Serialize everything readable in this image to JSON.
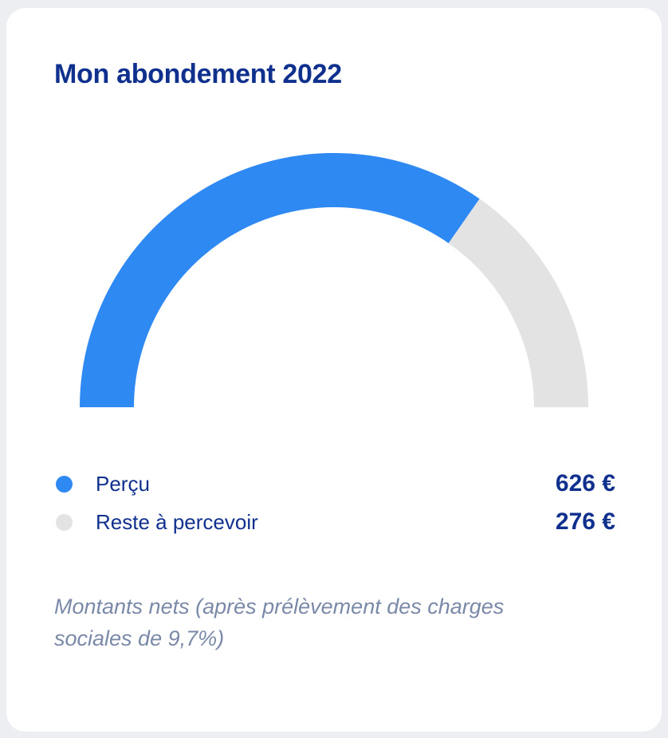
{
  "page": {
    "background_color": "#ECEEF2",
    "card_background_color": "#FFFFFF"
  },
  "header": {
    "title": "Mon abondement 2022",
    "title_color": "#10308E"
  },
  "chart_data": {
    "type": "pie",
    "subtype": "half-donut-gauge",
    "start_angle_deg": 180,
    "end_angle_deg": 0,
    "unit": "€",
    "total": 902,
    "series": [
      {
        "label": "Perçu",
        "value": 626,
        "display_value": "626 €",
        "color": "#2F89F2"
      },
      {
        "label": "Reste à percevoir",
        "value": 276,
        "display_value": "276 €",
        "color": "#E3E3E4"
      }
    ],
    "legend_position": "bottom"
  },
  "footnote": {
    "text": "Montants nets (après prélèvement des charges sociales de 9,7%)"
  }
}
